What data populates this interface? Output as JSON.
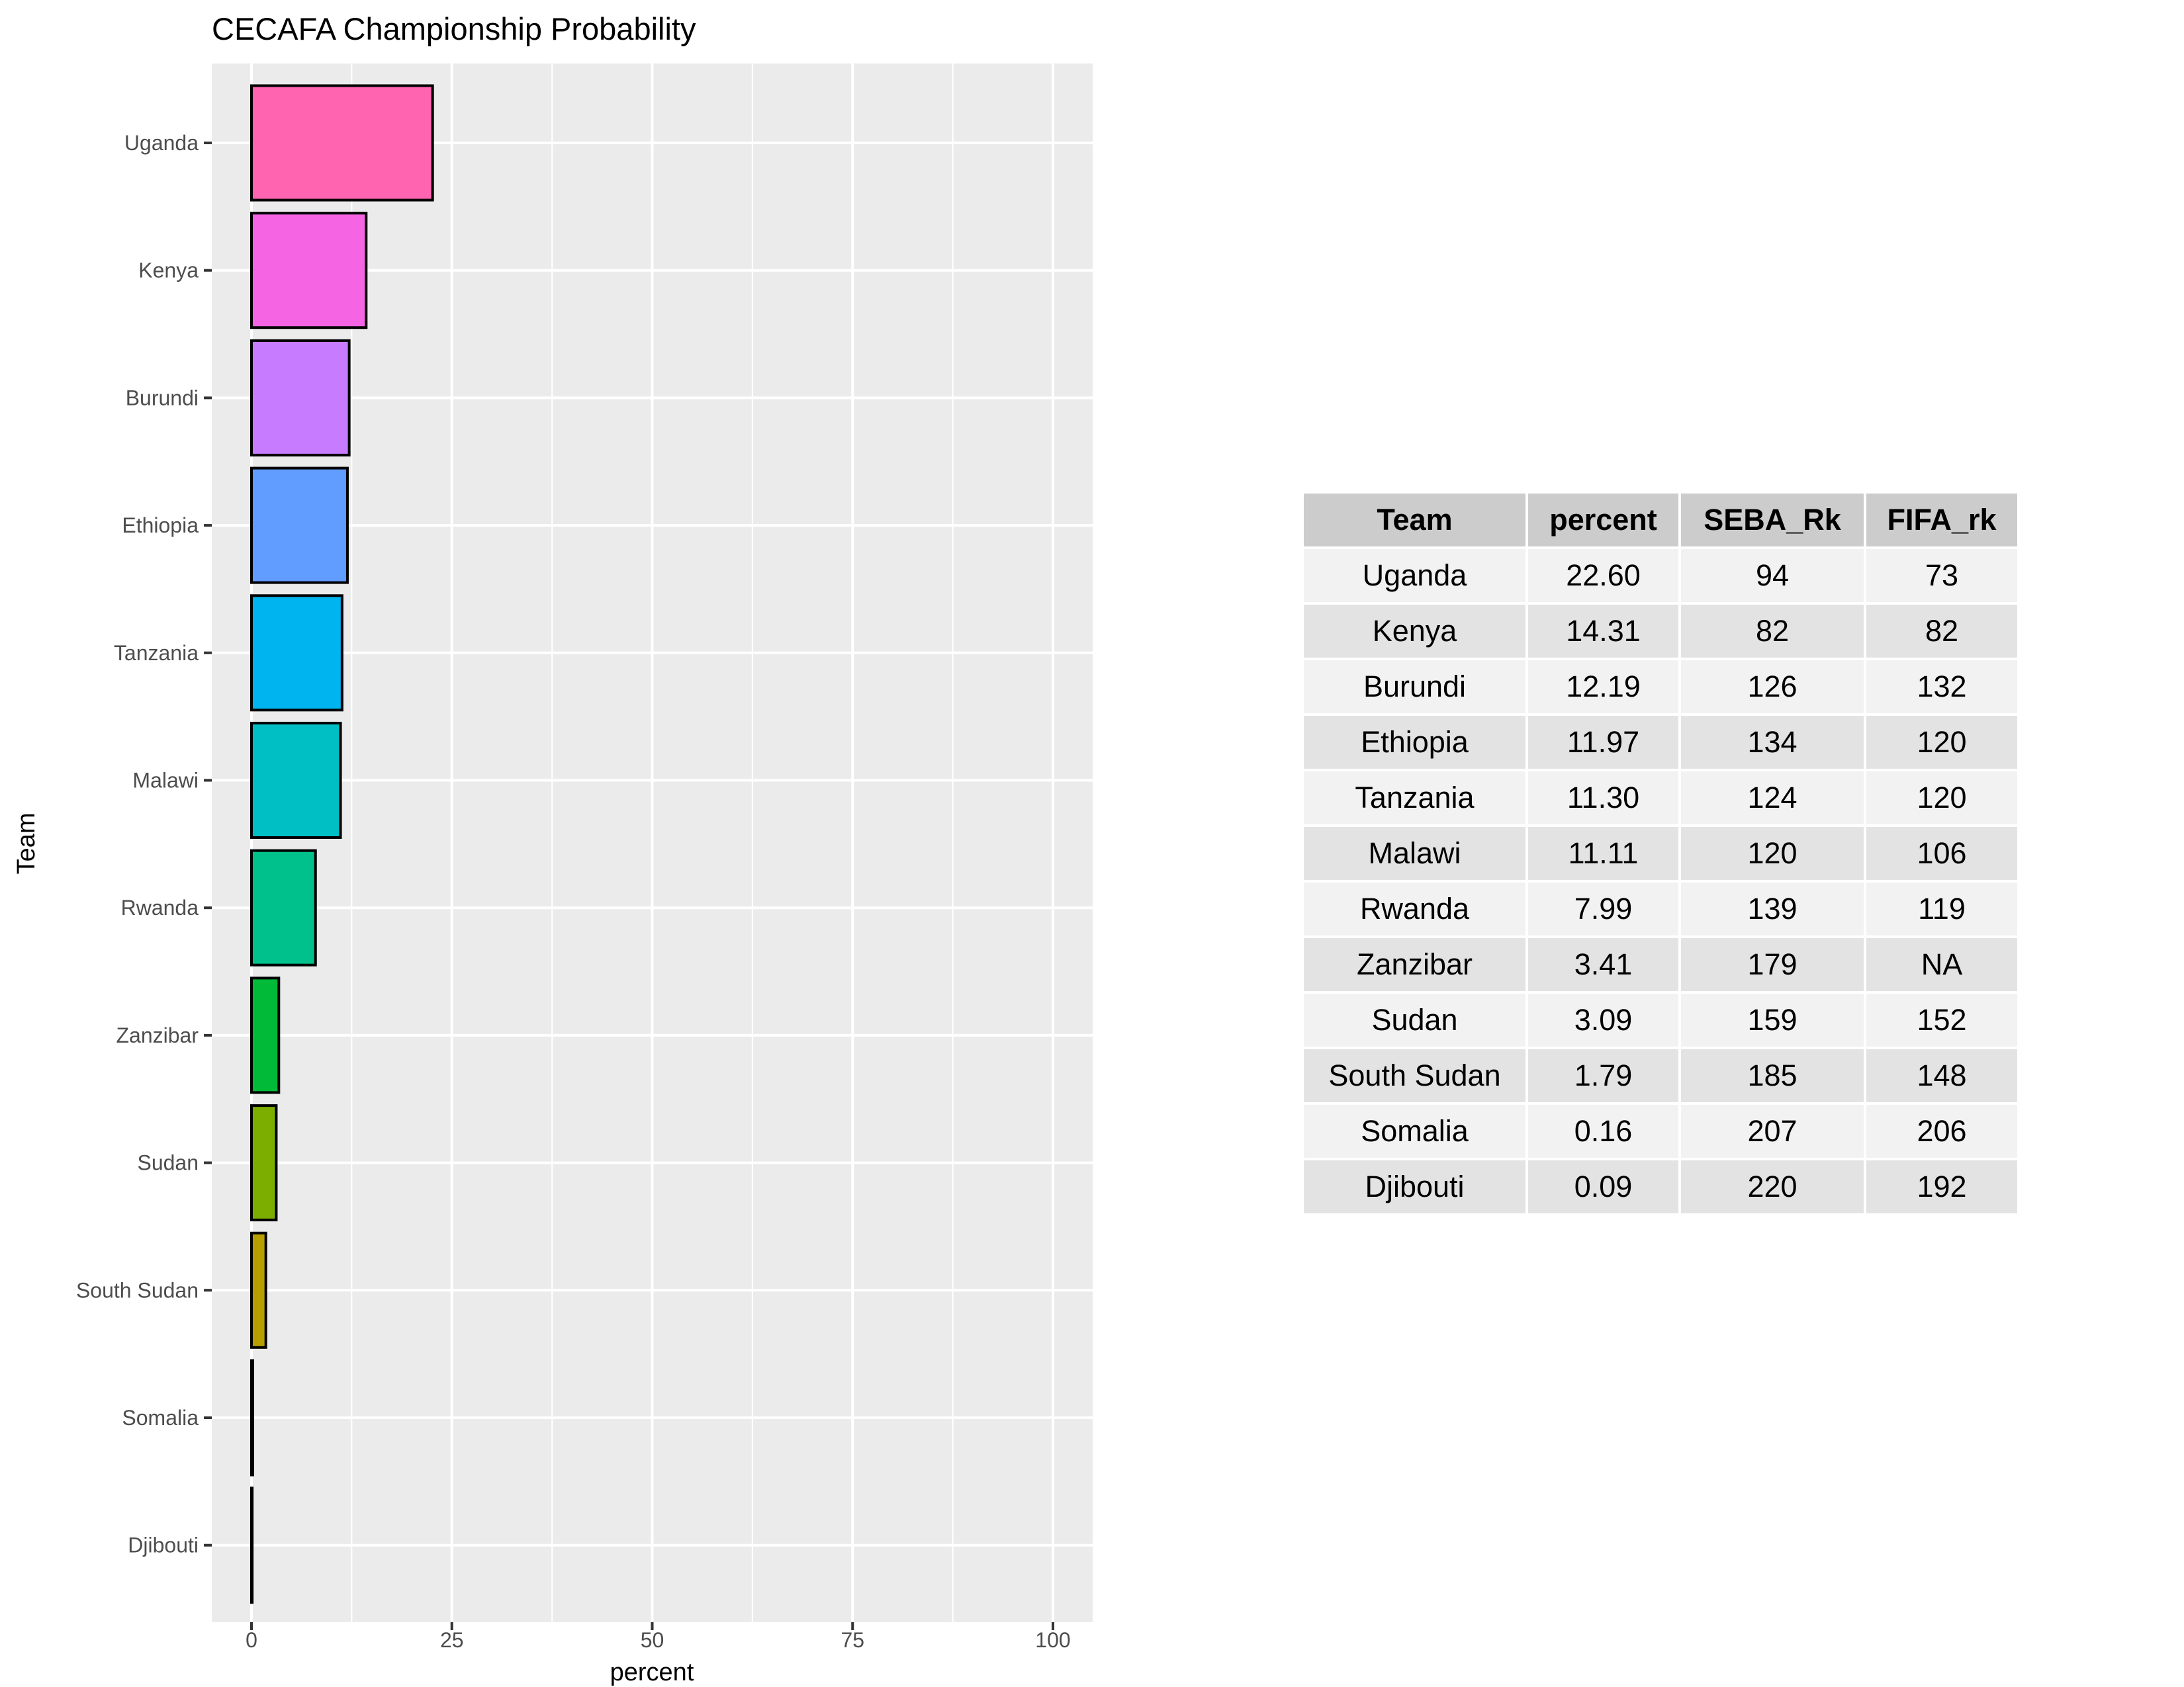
{
  "chart_data": {
    "type": "bar",
    "orientation": "horizontal",
    "title": "CECAFA Championship Probability",
    "xlabel": "percent",
    "ylabel": "Team",
    "xlim": [
      0,
      100
    ],
    "xticks": [
      0,
      25,
      50,
      75,
      100
    ],
    "grid": true,
    "legend": "none",
    "categories": [
      "Uganda",
      "Kenya",
      "Burundi",
      "Ethiopia",
      "Tanzania",
      "Malawi",
      "Rwanda",
      "Zanzibar",
      "Sudan",
      "South Sudan",
      "Somalia",
      "Djibouti"
    ],
    "values": [
      22.6,
      14.31,
      12.19,
      11.97,
      11.3,
      11.11,
      7.99,
      3.41,
      3.09,
      1.79,
      0.16,
      0.09
    ],
    "colors": [
      "#FF64B0",
      "#F564E3",
      "#C77CFF",
      "#619CFF",
      "#00B4F0",
      "#00BFC4",
      "#00C08B",
      "#00BA38",
      "#7CAE00",
      "#B79F00",
      "#DE8C00",
      "#F8766D"
    ]
  },
  "table": {
    "headers": [
      "Team",
      "percent",
      "SEBA_Rk",
      "FIFA_rk"
    ],
    "rows": [
      [
        "Uganda",
        "22.60",
        "94",
        "73"
      ],
      [
        "Kenya",
        "14.31",
        "82",
        "82"
      ],
      [
        "Burundi",
        "12.19",
        "126",
        "132"
      ],
      [
        "Ethiopia",
        "11.97",
        "134",
        "120"
      ],
      [
        "Tanzania",
        "11.30",
        "124",
        "120"
      ],
      [
        "Malawi",
        "11.11",
        "120",
        "106"
      ],
      [
        "Rwanda",
        "7.99",
        "139",
        "119"
      ],
      [
        "Zanzibar",
        "3.41",
        "179",
        "NA"
      ],
      [
        "Sudan",
        "3.09",
        "159",
        "152"
      ],
      [
        "South Sudan",
        "1.79",
        "185",
        "148"
      ],
      [
        "Somalia",
        "0.16",
        "207",
        "206"
      ],
      [
        "Djibouti",
        "0.09",
        "220",
        "192"
      ]
    ]
  }
}
